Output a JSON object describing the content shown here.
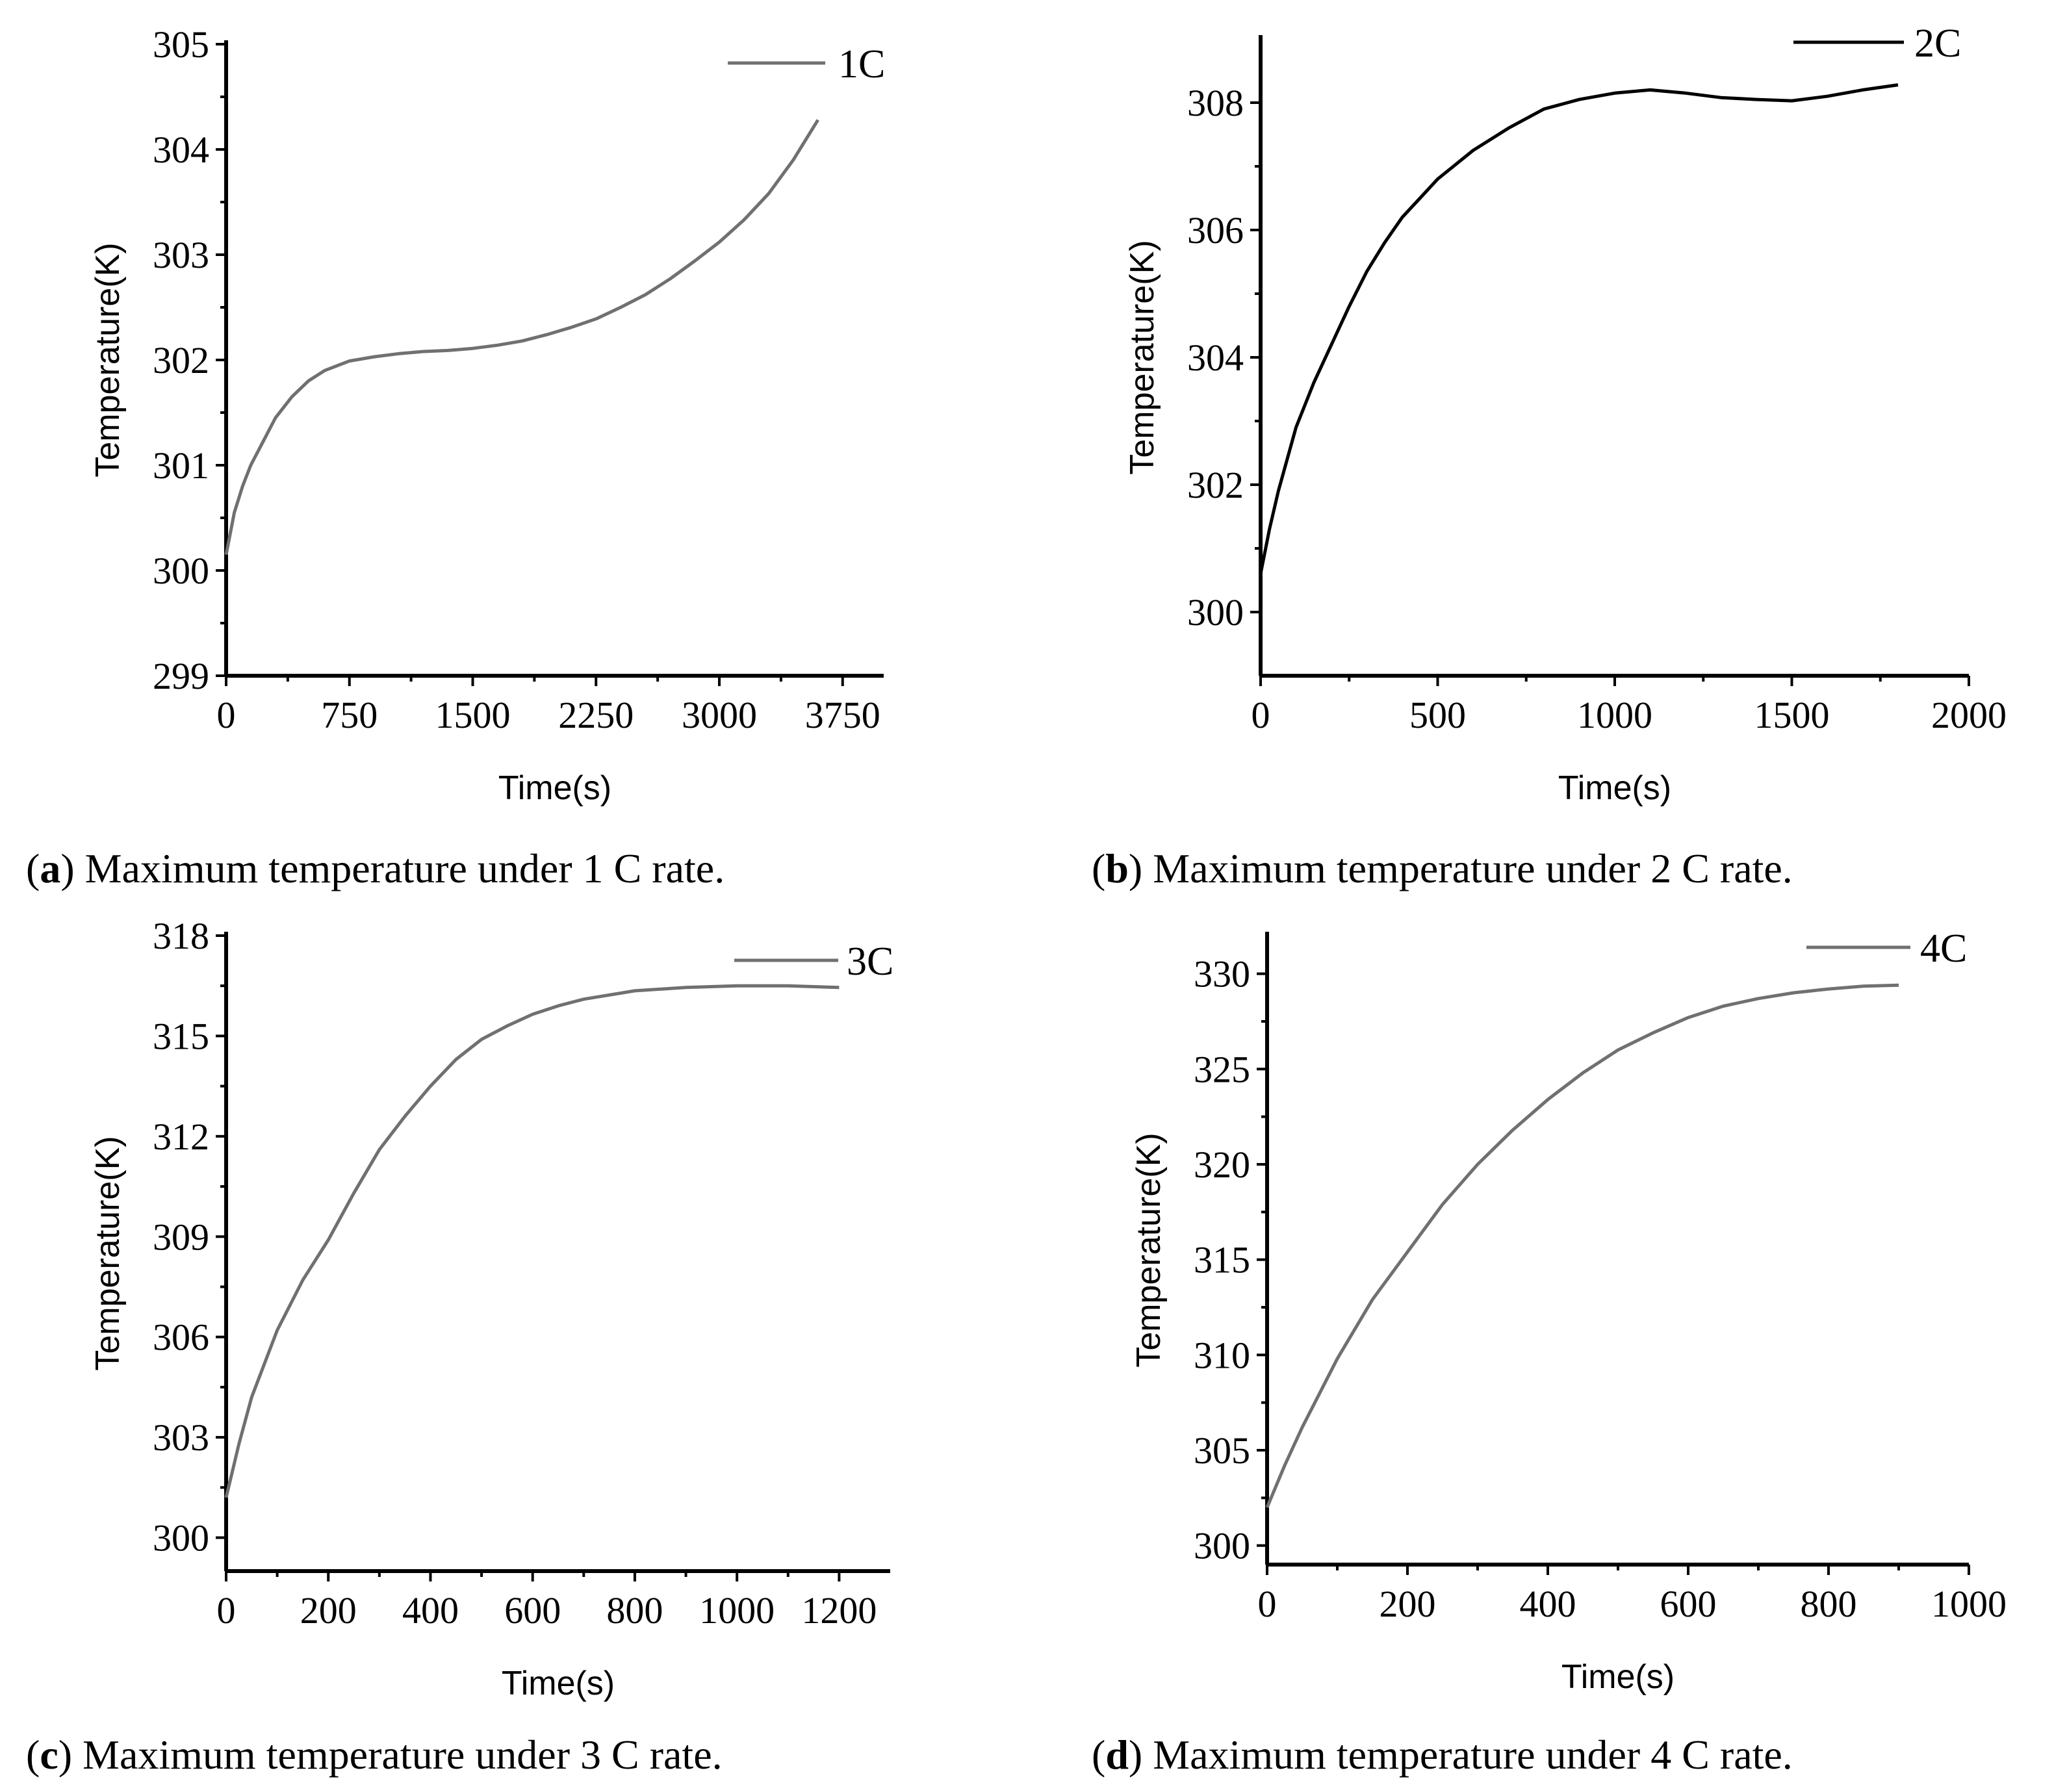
{
  "chart_data": [
    {
      "type": "line",
      "panel": "a",
      "caption_letter": "a",
      "caption_text": "Maximum temperature under 1 C rate.",
      "xlabel": "Time(s)",
      "ylabel": "Temperature(K)",
      "xlim": [
        0,
        4000
      ],
      "ylim": [
        299,
        305
      ],
      "xticks": [
        0,
        750,
        1500,
        2250,
        3000,
        3750
      ],
      "yticks": [
        299,
        300,
        301,
        302,
        303,
        304,
        305
      ],
      "legend_position": "top-right",
      "series": [
        {
          "name": "1C",
          "color": "#707070",
          "x": [
            0,
            50,
            100,
            150,
            200,
            300,
            400,
            500,
            600,
            750,
            900,
            1050,
            1200,
            1350,
            1500,
            1650,
            1800,
            1950,
            2100,
            2250,
            2400,
            2550,
            2700,
            2850,
            3000,
            3150,
            3300,
            3450,
            3600
          ],
          "y": [
            300.15,
            300.55,
            300.8,
            301.0,
            301.15,
            301.45,
            301.65,
            301.8,
            301.9,
            301.99,
            302.03,
            302.06,
            302.08,
            302.09,
            302.11,
            302.14,
            302.18,
            302.24,
            302.31,
            302.39,
            302.5,
            302.62,
            302.77,
            302.94,
            303.12,
            303.33,
            303.58,
            303.9,
            304.28
          ]
        }
      ]
    },
    {
      "type": "line",
      "panel": "b",
      "caption_letter": "b",
      "caption_text": "Maximum temperature under 2 C rate.",
      "xlabel": "Time(s)",
      "ylabel": "Temperature(K)",
      "xlim": [
        0,
        2000
      ],
      "ylim": [
        299,
        309
      ],
      "xticks": [
        0,
        500,
        1000,
        1500,
        2000
      ],
      "yticks": [
        300,
        302,
        304,
        306,
        308
      ],
      "legend_position": "top-right",
      "series": [
        {
          "name": "2C",
          "color": "#000000",
          "x": [
            0,
            25,
            50,
            100,
            150,
            200,
            250,
            300,
            350,
            400,
            450,
            500,
            600,
            700,
            800,
            900,
            1000,
            1100,
            1200,
            1300,
            1400,
            1500,
            1600,
            1700,
            1800
          ],
          "y": [
            300.6,
            301.3,
            301.9,
            302.9,
            303.6,
            304.2,
            304.8,
            305.35,
            305.8,
            306.2,
            306.5,
            306.8,
            307.25,
            307.6,
            307.9,
            308.05,
            308.15,
            308.2,
            308.15,
            308.08,
            308.05,
            308.03,
            308.1,
            308.2,
            308.28
          ]
        }
      ]
    },
    {
      "type": "line",
      "panel": "c",
      "caption_letter": "c",
      "caption_text": "Maximum temperature under 3 C rate.",
      "xlabel": "Time(s)",
      "ylabel": "Temperature(K)",
      "xlim": [
        0,
        1300
      ],
      "ylim": [
        299,
        318
      ],
      "xticks": [
        0,
        200,
        400,
        600,
        800,
        1000,
        1200
      ],
      "yticks": [
        300,
        303,
        306,
        309,
        312,
        315,
        318
      ],
      "legend_position": "top-right",
      "series": [
        {
          "name": "3C",
          "color": "#707070",
          "x": [
            0,
            25,
            50,
            100,
            150,
            200,
            250,
            300,
            350,
            400,
            450,
            500,
            550,
            600,
            650,
            700,
            800,
            900,
            1000,
            1100,
            1200
          ],
          "y": [
            301.2,
            302.8,
            304.2,
            306.2,
            307.7,
            308.9,
            310.3,
            311.6,
            312.6,
            313.5,
            314.3,
            314.9,
            315.3,
            315.65,
            315.9,
            316.1,
            316.35,
            316.45,
            316.5,
            316.5,
            316.45
          ]
        }
      ]
    },
    {
      "type": "line",
      "panel": "d",
      "caption_letter": "d",
      "caption_text": "Maximum temperature under 4 C rate.",
      "xlabel": "Time(s)",
      "ylabel": "Temperature(K)",
      "xlim": [
        0,
        1000
      ],
      "ylim": [
        299,
        332
      ],
      "xticks": [
        0,
        200,
        400,
        600,
        800,
        1000
      ],
      "yticks": [
        300,
        305,
        310,
        315,
        320,
        325,
        330
      ],
      "legend_position": "top-right",
      "series": [
        {
          "name": "4C",
          "color": "#707070",
          "x": [
            0,
            25,
            50,
            100,
            150,
            200,
            250,
            300,
            350,
            400,
            450,
            500,
            550,
            600,
            650,
            700,
            750,
            800,
            850,
            900
          ],
          "y": [
            302.0,
            304.2,
            306.2,
            309.8,
            312.9,
            315.4,
            317.9,
            320.0,
            321.8,
            323.4,
            324.8,
            326.0,
            326.9,
            327.7,
            328.3,
            328.7,
            329.0,
            329.2,
            329.35,
            329.4
          ]
        }
      ]
    }
  ]
}
